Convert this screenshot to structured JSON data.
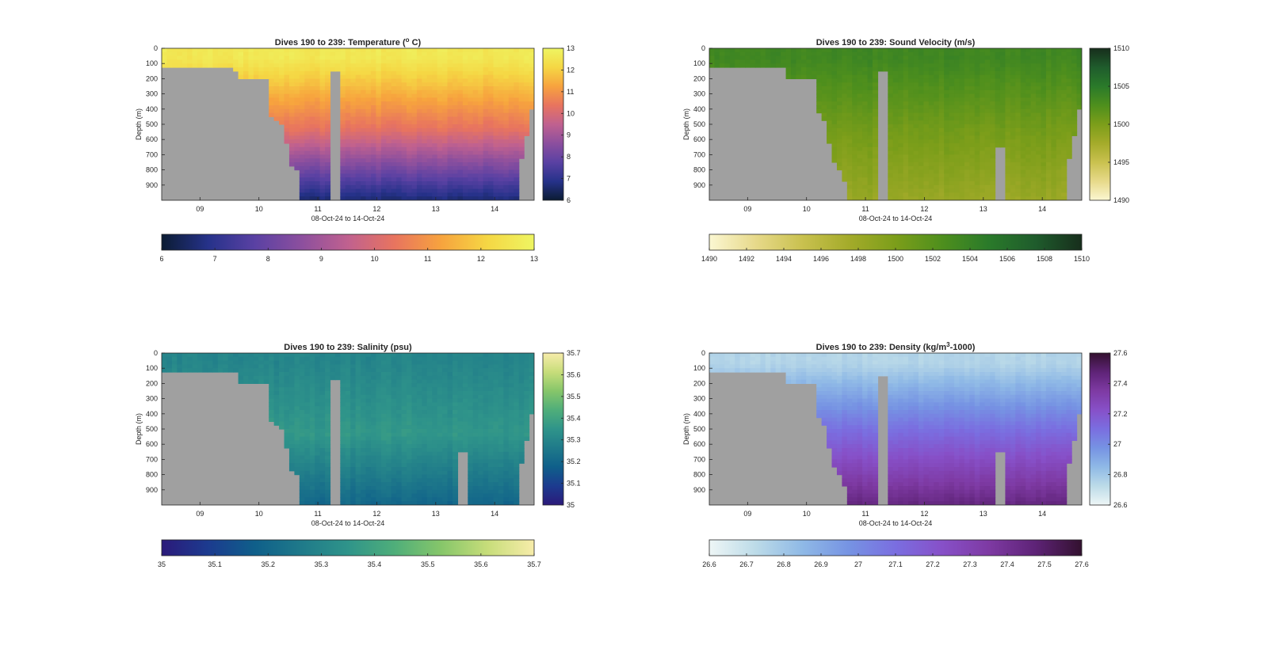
{
  "figure": {
    "background": "#ffffff",
    "mask_color": "#a0a0a0"
  },
  "chart_data": [
    {
      "type": "heatmap",
      "title": "Dives 190 to 239: Temperature (",
      "title_sup": "o",
      "title_tail": " C)",
      "xlabel": "08-Oct-24 to 14-Oct-24",
      "ylabel": "Depth (m)",
      "x_ticks": [
        "09",
        "10",
        "11",
        "12",
        "13",
        "14"
      ],
      "x_range": [
        8.35,
        14.67
      ],
      "y_ticks": [
        0,
        100,
        200,
        300,
        400,
        500,
        600,
        700,
        800,
        900
      ],
      "y_range": [
        0,
        1000
      ],
      "y_reversed": true,
      "colorbar": {
        "min": 6,
        "max": 13,
        "side_ticks": [
          "13",
          "12",
          "11",
          "10",
          "9",
          "8",
          "7",
          "6"
        ],
        "bottom_ticks": [
          "6",
          "7",
          "8",
          "9",
          "10",
          "11",
          "12",
          "13"
        ]
      },
      "colormap": [
        "#0b1c33",
        "#26328a",
        "#5a41a3",
        "#8c4f9e",
        "#c0618f",
        "#e8745f",
        "#f7a33e",
        "#f5d744",
        "#eef562"
      ],
      "profile": {
        "surface": 12.6,
        "mixed_layer_depth": 70,
        "deep": 6.6,
        "mid": 10.3,
        "noise": 0.25
      },
      "bottom_depths": [
        125,
        125,
        125,
        125,
        125,
        125,
        125,
        125,
        125,
        125,
        125,
        125,
        125,
        125,
        140,
        200,
        210,
        210,
        210,
        210,
        210,
        460,
        480,
        500,
        620,
        780,
        800,
        990,
        990,
        990,
        990,
        990,
        990,
        150,
        150,
        990,
        990,
        990,
        990,
        990,
        990,
        990,
        990,
        990,
        990,
        990,
        990,
        990,
        990,
        990,
        990,
        990,
        990,
        990,
        990,
        990,
        990,
        990,
        990,
        990,
        990,
        990,
        990,
        990,
        990,
        990,
        990,
        990,
        990,
        990,
        730,
        570,
        410
      ],
      "mask_gap": {
        "at_dive": 33,
        "width": 2,
        "from_depth": 150
      },
      "extra_gaps": []
    },
    {
      "type": "heatmap",
      "title": "Dives 190 to 239: Sound Velocity (m/s)",
      "title_sup": "",
      "title_tail": "",
      "xlabel": "08-Oct-24 to 14-Oct-24",
      "ylabel": "Depth (m)",
      "x_ticks": [
        "09",
        "10",
        "11",
        "12",
        "13",
        "14"
      ],
      "x_range": [
        8.35,
        14.67
      ],
      "y_ticks": [
        0,
        100,
        200,
        300,
        400,
        500,
        600,
        700,
        800,
        900
      ],
      "y_range": [
        0,
        1000
      ],
      "y_reversed": true,
      "colorbar": {
        "min": 1490,
        "max": 1510,
        "side_ticks": [
          "1510",
          "1505",
          "1500",
          "1495",
          "1490"
        ],
        "bottom_ticks": [
          "1490",
          "1492",
          "1494",
          "1496",
          "1498",
          "1500",
          "1502",
          "1504",
          "1506",
          "1508",
          "1510"
        ]
      },
      "colormap": [
        "#fbf7d2",
        "#e7d98a",
        "#c9c14f",
        "#a4ab2a",
        "#7c9e1a",
        "#4e8f1d",
        "#2a7a2a",
        "#1f5c2c",
        "#172e1c"
      ],
      "profile": {
        "surface": 1503.5,
        "mixed_layer_depth": 70,
        "deep": 1498.2,
        "mid": 1500.5,
        "noise": 0.8
      },
      "bottom_depths": [
        115,
        115,
        115,
        115,
        115,
        115,
        115,
        115,
        115,
        115,
        115,
        115,
        115,
        115,
        130,
        200,
        210,
        210,
        210,
        210,
        210,
        420,
        480,
        620,
        740,
        790,
        870,
        990,
        990,
        990,
        990,
        990,
        990,
        150,
        150,
        990,
        990,
        990,
        990,
        990,
        990,
        990,
        990,
        990,
        990,
        990,
        990,
        990,
        990,
        990,
        990,
        990,
        990,
        990,
        990,
        990,
        990,
        990,
        990,
        990,
        990,
        990,
        990,
        990,
        990,
        990,
        990,
        990,
        990,
        990,
        730,
        570,
        410
      ],
      "mask_gap": {
        "at_dive": 33,
        "width": 2,
        "from_depth": 150
      },
      "extra_gaps": [
        56,
        57
      ]
    },
    {
      "type": "heatmap",
      "title": "Dives 190 to 239: Salinity (psu)",
      "title_sup": "",
      "title_tail": "",
      "xlabel": "08-Oct-24 to 14-Oct-24",
      "ylabel": "Depth (m)",
      "x_ticks": [
        "09",
        "10",
        "11",
        "12",
        "13",
        "14"
      ],
      "x_range": [
        8.35,
        14.67
      ],
      "y_ticks": [
        0,
        100,
        200,
        300,
        400,
        500,
        600,
        700,
        800,
        900
      ],
      "y_range": [
        0,
        1000
      ],
      "y_reversed": true,
      "colorbar": {
        "min": 35,
        "max": 35.7,
        "side_ticks": [
          "35.7",
          "35.6",
          "35.5",
          "35.4",
          "35.3",
          "35.2",
          "35.1",
          "35"
        ],
        "bottom_ticks": [
          "35",
          "35.1",
          "35.2",
          "35.3",
          "35.4",
          "35.5",
          "35.6",
          "35.7"
        ]
      },
      "colormap": [
        "#2b1a7a",
        "#1c3b8f",
        "#0f5f8a",
        "#1f7a8a",
        "#2f948a",
        "#4fae7a",
        "#86c66a",
        "#c7dd7a",
        "#f7ecaa"
      ],
      "profile": {
        "surface": 35.3,
        "mixed_layer_depth": 60,
        "deep": 35.2,
        "mid": 35.36,
        "noise": 0.03
      },
      "bottom_depths": [
        115,
        115,
        115,
        115,
        115,
        115,
        115,
        115,
        115,
        115,
        115,
        115,
        115,
        115,
        130,
        200,
        210,
        210,
        210,
        210,
        210,
        460,
        480,
        500,
        620,
        780,
        800,
        990,
        990,
        990,
        990,
        990,
        990,
        170,
        200,
        990,
        990,
        990,
        990,
        990,
        990,
        990,
        990,
        990,
        990,
        990,
        990,
        990,
        990,
        990,
        990,
        990,
        990,
        990,
        990,
        990,
        990,
        990,
        990,
        990,
        990,
        990,
        990,
        990,
        990,
        990,
        990,
        990,
        990,
        990,
        730,
        570,
        410
      ],
      "mask_gap": {
        "at_dive": 33,
        "width": 2,
        "from_depth": 170
      },
      "extra_gaps": [
        58,
        59
      ]
    },
    {
      "type": "heatmap",
      "title": "Dives 190 to 239: Density (kg/m",
      "title_sup": "3",
      "title_tail": "-1000)",
      "xlabel": "08-Oct-24 to 14-Oct-24",
      "ylabel": "Depth (m)",
      "x_ticks": [
        "09",
        "10",
        "11",
        "12",
        "13",
        "14"
      ],
      "x_range": [
        8.35,
        14.67
      ],
      "y_ticks": [
        0,
        100,
        200,
        300,
        400,
        500,
        600,
        700,
        800,
        900
      ],
      "y_range": [
        0,
        1000
      ],
      "y_reversed": true,
      "colorbar": {
        "min": 26.6,
        "max": 27.6,
        "side_ticks": [
          "27.6",
          "27.4",
          "27.2",
          "27",
          "26.8",
          "26.6"
        ],
        "bottom_ticks": [
          "26.6",
          "26.7",
          "26.8",
          "26.9",
          "27",
          "27.1",
          "27.2",
          "27.3",
          "27.4",
          "27.5",
          "27.6"
        ]
      },
      "colormap": [
        "#eef6f6",
        "#bcdbe8",
        "#8fb9e6",
        "#7693e3",
        "#7a6ee0",
        "#8750c8",
        "#7e3aa3",
        "#5e2377",
        "#33112f"
      ],
      "profile": {
        "surface": 26.75,
        "mixed_layer_depth": 70,
        "deep": 27.45,
        "mid": 27.12,
        "noise": 0.03
      },
      "bottom_depths": [
        115,
        115,
        115,
        115,
        115,
        115,
        115,
        115,
        115,
        115,
        115,
        115,
        115,
        115,
        130,
        200,
        210,
        210,
        210,
        210,
        210,
        420,
        480,
        620,
        740,
        790,
        870,
        990,
        990,
        990,
        990,
        990,
        990,
        150,
        150,
        990,
        990,
        990,
        990,
        990,
        990,
        990,
        990,
        990,
        990,
        990,
        990,
        990,
        990,
        990,
        990,
        990,
        990,
        990,
        990,
        990,
        990,
        990,
        990,
        990,
        990,
        990,
        990,
        990,
        990,
        990,
        990,
        990,
        990,
        990,
        730,
        570,
        410
      ],
      "mask_gap": {
        "at_dive": 33,
        "width": 2,
        "from_depth": 150
      },
      "extra_gaps": [
        56,
        57
      ]
    }
  ]
}
